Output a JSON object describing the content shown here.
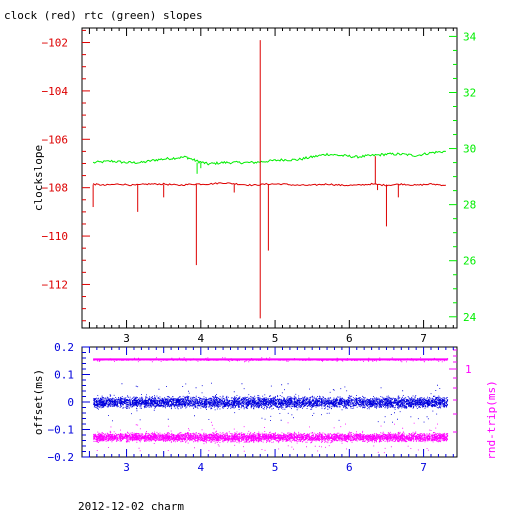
{
  "title": "clock (red) rtc (green) slopes",
  "footer": "2012-12-02 charm",
  "colors": {
    "red": "#dd0000",
    "green": "#00ee00",
    "blue": "#0000dd",
    "magenta": "#ff00ff",
    "frame": "#000000"
  },
  "chart_data": [
    {
      "type": "line",
      "ylabel": "clockslope",
      "y2label": "",
      "xlim": [
        2.4,
        7.45
      ],
      "ylim": [
        -113.8,
        -101.4
      ],
      "y2lim": [
        23.6,
        34.3
      ],
      "xticks": [
        3,
        4,
        5,
        6,
        7
      ],
      "yticks": [
        -102,
        -104,
        -106,
        -108,
        -110,
        -112
      ],
      "y2ticks": [
        34,
        32,
        30,
        28,
        26,
        24
      ],
      "series": [
        {
          "name": "clock",
          "color": "red",
          "axis": "left",
          "x": [
            2.55,
            2.7,
            2.9,
            3.1,
            3.3,
            3.5,
            3.7,
            3.9,
            4.1,
            4.3,
            4.5,
            4.7,
            4.9,
            5.1,
            5.3,
            5.5,
            5.7,
            5.9,
            6.1,
            6.3,
            6.5,
            6.7,
            6.9,
            7.1,
            7.3
          ],
          "y": [
            -107.85,
            -107.9,
            -107.85,
            -107.9,
            -107.85,
            -107.85,
            -107.9,
            -107.85,
            -107.85,
            -107.8,
            -107.85,
            -107.9,
            -107.85,
            -107.85,
            -107.9,
            -107.9,
            -107.85,
            -107.9,
            -107.9,
            -107.85,
            -107.9,
            -107.85,
            -107.9,
            -107.85,
            -107.9
          ],
          "spikes": [
            {
              "x": 2.55,
              "y": -108.8
            },
            {
              "x": 3.15,
              "y": -109.0
            },
            {
              "x": 3.5,
              "y": -108.4
            },
            {
              "x": 3.94,
              "y": -111.2
            },
            {
              "x": 4.45,
              "y": -108.2
            },
            {
              "x": 4.8,
              "y": -113.4
            },
            {
              "x": 4.8,
              "y": -101.9
            },
            {
              "x": 4.91,
              "y": -110.6
            },
            {
              "x": 6.35,
              "y": -106.7
            },
            {
              "x": 6.38,
              "y": -108.1
            },
            {
              "x": 6.5,
              "y": -109.6
            },
            {
              "x": 6.66,
              "y": -108.4
            }
          ]
        },
        {
          "name": "rtc",
          "color": "green",
          "axis": "right",
          "x": [
            2.55,
            2.8,
            3.0,
            3.2,
            3.4,
            3.6,
            3.8,
            3.95,
            4.1,
            4.3,
            4.5,
            4.7,
            4.9,
            5.1,
            5.3,
            5.5,
            5.7,
            5.9,
            6.1,
            6.3,
            6.5,
            6.7,
            6.9,
            7.1,
            7.3
          ],
          "y": [
            29.5,
            29.55,
            29.5,
            29.5,
            29.6,
            29.65,
            29.7,
            29.55,
            29.45,
            29.5,
            29.5,
            29.5,
            29.55,
            29.6,
            29.6,
            29.7,
            29.8,
            29.75,
            29.7,
            29.75,
            29.8,
            29.8,
            29.75,
            29.85,
            29.9
          ]
        }
      ]
    },
    {
      "type": "scatter",
      "ylabel": "offset(ms)",
      "y2label": "rnd-trip(ms)",
      "xlim": [
        2.4,
        7.45
      ],
      "ylim": [
        -0.2,
        0.2
      ],
      "xticks": [
        3,
        4,
        5,
        6,
        7
      ],
      "yticks": [
        0.2,
        0.1,
        0,
        -0.1,
        -0.2
      ],
      "y2ticks": [
        1
      ],
      "series": [
        {
          "name": "offset",
          "color": "blue",
          "x_range": [
            2.55,
            7.32
          ],
          "y_center": 0.0,
          "y_spread": 0.018
        },
        {
          "name": "rnd-trip band",
          "color": "magenta",
          "x_range": [
            2.55,
            7.32
          ],
          "y_center": -0.127,
          "y_spread": 0.014
        },
        {
          "name": "rnd-trip upper",
          "color": "magenta",
          "x_range": [
            2.55,
            7.32
          ],
          "y_center": 0.155,
          "y_spread": 0.002
        }
      ]
    }
  ]
}
